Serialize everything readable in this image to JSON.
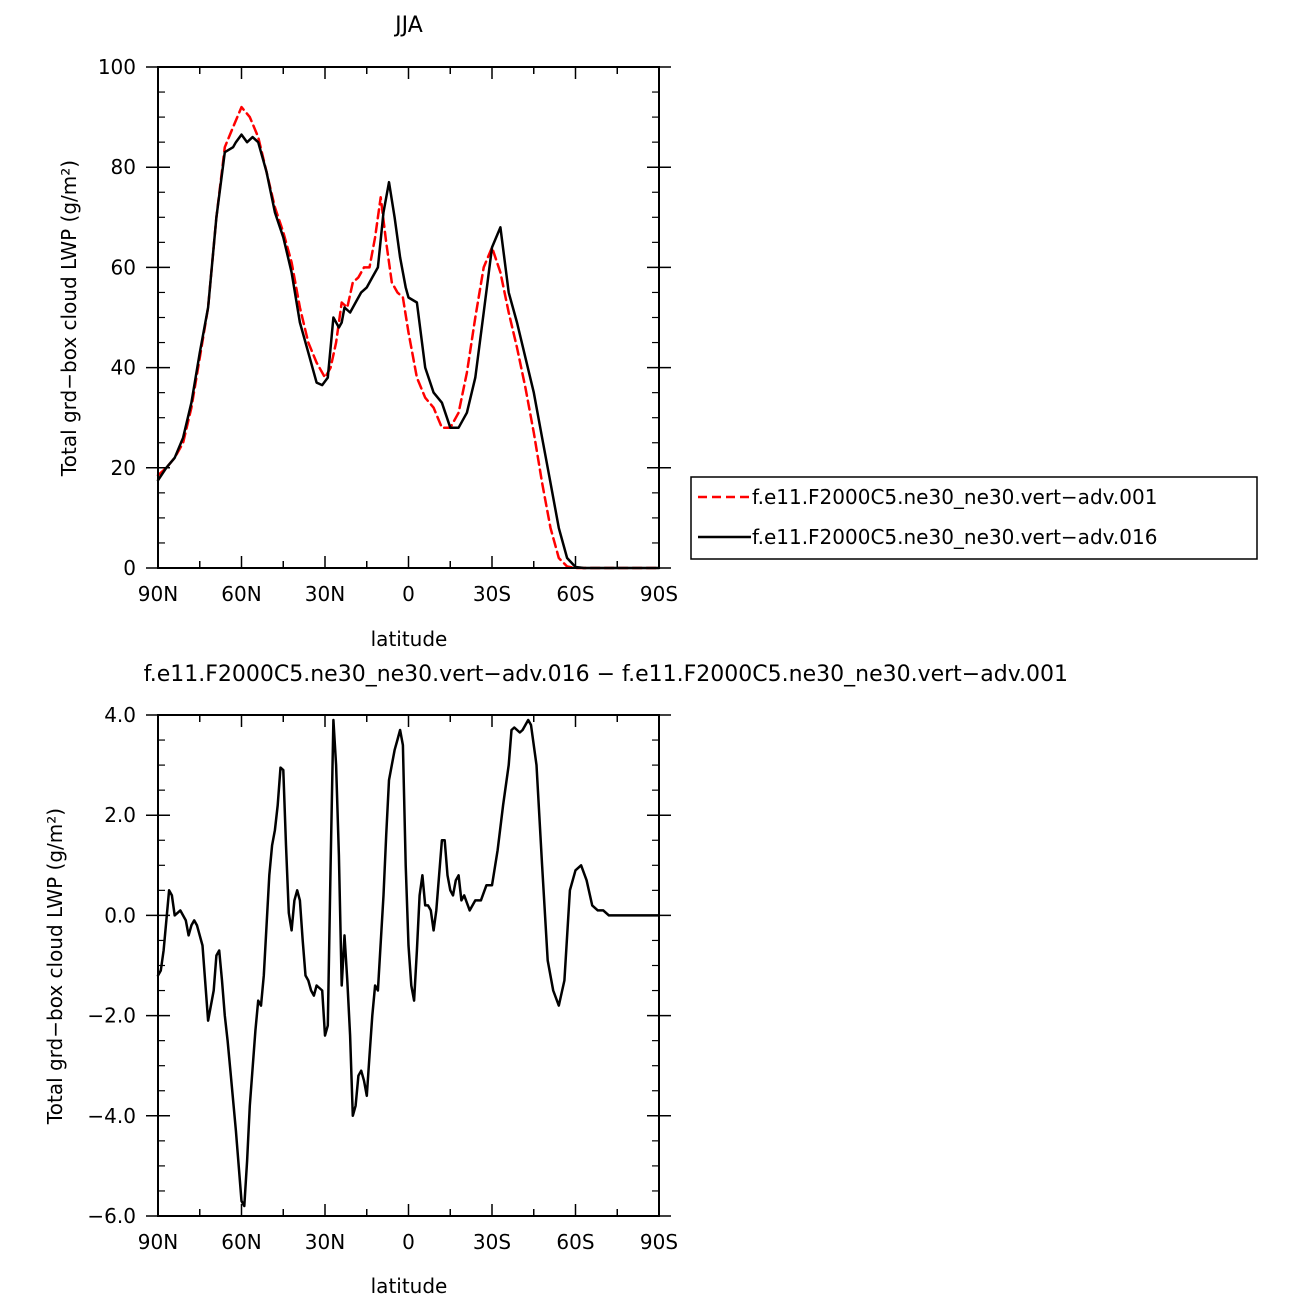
{
  "chart_data": [
    {
      "type": "line",
      "title": "JJA",
      "xlabel": "latitude",
      "ylabel": "Total grd−box cloud LWP (g/m²)",
      "xlim": [
        90,
        -90
      ],
      "ylim": [
        0,
        100
      ],
      "xticks": [
        {
          "value": 90,
          "label": "90N"
        },
        {
          "value": 60,
          "label": "60N"
        },
        {
          "value": 30,
          "label": "30N"
        },
        {
          "value": 0,
          "label": "0"
        },
        {
          "value": -30,
          "label": "30S"
        },
        {
          "value": -60,
          "label": "60S"
        },
        {
          "value": -90,
          "label": "90S"
        }
      ],
      "yticks": [
        {
          "value": 0,
          "label": "0"
        },
        {
          "value": 20,
          "label": "20"
        },
        {
          "value": 40,
          "label": "40"
        },
        {
          "value": 60,
          "label": "60"
        },
        {
          "value": 80,
          "label": "80"
        },
        {
          "value": 100,
          "label": "100"
        }
      ],
      "legend_position": "right",
      "series": [
        {
          "name": "f.e11.F2000C5.ne30_ne30.vert−adv.001",
          "color": "#ff0000",
          "dash": "dashed",
          "x": [
            90,
            87,
            84,
            81,
            78,
            75,
            72,
            69,
            66,
            63,
            60,
            57,
            54,
            51,
            48,
            45,
            42,
            39,
            36,
            33,
            30,
            28,
            26,
            24,
            22,
            20,
            18,
            16,
            14,
            12,
            10,
            8,
            6,
            4,
            2,
            0,
            -3,
            -6,
            -9,
            -12,
            -15,
            -18,
            -21,
            -24,
            -27,
            -30,
            -33,
            -36,
            -39,
            -42,
            -45,
            -48,
            -51,
            -54,
            -57,
            -60,
            -63,
            -66,
            -69,
            -72,
            -75,
            -78,
            -81,
            -84,
            -87,
            -90
          ],
          "y": [
            18.5,
            20,
            22,
            25,
            32,
            42,
            52,
            70,
            84,
            88,
            92,
            90,
            86,
            79,
            72,
            67,
            61,
            52,
            45,
            41,
            38,
            40,
            45,
            53,
            52,
            57,
            58,
            60,
            60,
            66,
            74,
            65,
            57,
            55,
            54,
            47,
            38,
            34,
            32,
            28,
            28,
            31,
            39,
            50,
            60,
            64,
            59,
            51,
            44,
            36,
            27,
            17,
            8,
            2,
            0.3,
            0,
            0,
            0,
            0,
            0,
            0,
            0,
            0,
            0,
            0,
            0
          ]
        },
        {
          "name": "f.e11.F2000C5.ne30_ne30.vert−adv.016",
          "color": "#000000",
          "dash": "solid",
          "x": [
            90,
            87,
            84,
            81,
            78,
            75,
            72,
            69,
            66,
            63,
            62,
            60,
            58,
            56,
            54,
            51,
            48,
            45,
            42,
            39,
            36,
            33,
            31,
            29,
            28,
            27,
            25,
            24,
            23,
            21,
            19,
            17,
            15,
            13,
            11,
            9,
            7,
            5,
            3,
            1,
            0,
            -3,
            -6,
            -9,
            -12,
            -15,
            -18,
            -21,
            -24,
            -27,
            -30,
            -33,
            -36,
            -39,
            -42,
            -45,
            -48,
            -51,
            -54,
            -57,
            -60,
            -63,
            -66,
            -69,
            -72,
            -75,
            -78,
            -81,
            -84,
            -87,
            -90
          ],
          "y": [
            17.5,
            20,
            22,
            26,
            33,
            43,
            52,
            70,
            83,
            84,
            85,
            86.5,
            85,
            86,
            85,
            79,
            71,
            66,
            59,
            49,
            43,
            37,
            36.5,
            38,
            44,
            50,
            48,
            49,
            52,
            51,
            53,
            55,
            56,
            58,
            60,
            71,
            77,
            70,
            62,
            56,
            54,
            53,
            40,
            35,
            33,
            28,
            28,
            31,
            38,
            51,
            64,
            68,
            55,
            49,
            42,
            35,
            26,
            17,
            8,
            2,
            0.2,
            0,
            0,
            0,
            0,
            0,
            0,
            0,
            0,
            0,
            0
          ]
        }
      ]
    },
    {
      "type": "line",
      "title": "f.e11.F2000C5.ne30_ne30.vert−adv.016 − f.e11.F2000C5.ne30_ne30.vert−adv.001",
      "xlabel": "latitude",
      "ylabel": "Total grd−box cloud LWP (g/m²)",
      "xlim": [
        90,
        -90
      ],
      "ylim": [
        -6,
        4
      ],
      "xticks": [
        {
          "value": 90,
          "label": "90N"
        },
        {
          "value": 60,
          "label": "60N"
        },
        {
          "value": 30,
          "label": "30N"
        },
        {
          "value": 0,
          "label": "0"
        },
        {
          "value": -30,
          "label": "30S"
        },
        {
          "value": -60,
          "label": "60S"
        },
        {
          "value": -90,
          "label": "90S"
        }
      ],
      "yticks": [
        {
          "value": -6,
          "label": "−6.0"
        },
        {
          "value": -4,
          "label": "−4.0"
        },
        {
          "value": -2,
          "label": "−2.0"
        },
        {
          "value": 0,
          "label": "0.0"
        },
        {
          "value": 2,
          "label": "2.0"
        },
        {
          "value": 4,
          "label": "4.0"
        }
      ],
      "series": [
        {
          "name": "",
          "color": "#000000",
          "dash": "solid",
          "x": [
            90,
            89,
            88,
            86,
            85,
            84,
            82,
            80,
            79,
            78,
            77,
            76,
            74,
            72,
            70,
            69,
            68,
            67,
            66,
            65,
            64,
            62,
            60,
            59,
            58,
            57,
            55,
            54,
            53,
            52,
            50,
            49,
            48,
            47,
            46,
            45,
            44,
            43,
            42,
            41,
            40,
            39,
            38,
            37,
            36,
            35,
            34,
            33,
            31,
            30,
            29,
            28,
            27,
            26,
            25,
            24,
            23,
            22,
            21,
            20,
            19,
            18,
            17,
            16,
            15,
            14,
            13,
            12,
            11,
            9,
            8,
            7,
            5,
            4,
            3,
            2,
            1,
            0,
            -1,
            -2,
            -3,
            -4,
            -5,
            -6,
            -7,
            -8,
            -9,
            -10,
            -11,
            -12,
            -13,
            -14,
            -15,
            -16,
            -17,
            -18,
            -19,
            -20,
            -22,
            -24,
            -26,
            -28,
            -30,
            -32,
            -34,
            -36,
            -37,
            -38,
            -40,
            -41,
            -42,
            -43,
            -44,
            -46,
            -48,
            -50,
            -52,
            -54,
            -56,
            -58,
            -60,
            -62,
            -64,
            -66,
            -68,
            -70,
            -72,
            -75,
            -80,
            -85,
            -90
          ],
          "y": [
            -1.2,
            -1.1,
            -0.7,
            0.5,
            0.4,
            0,
            0.1,
            -0.1,
            -0.4,
            -0.2,
            -0.1,
            -0.2,
            -0.6,
            -2.1,
            -1.5,
            -0.8,
            -0.7,
            -1.3,
            -2,
            -2.5,
            -3.1,
            -4.3,
            -5.7,
            -5.8,
            -4.9,
            -3.8,
            -2.3,
            -1.7,
            -1.8,
            -1.2,
            0.8,
            1.4,
            1.7,
            2.2,
            2.95,
            2.9,
            1.4,
            0.05,
            -0.3,
            0.3,
            0.5,
            0.3,
            -0.5,
            -1.2,
            -1.3,
            -1.5,
            -1.6,
            -1.4,
            -1.5,
            -2.4,
            -2.2,
            1,
            3.9,
            3,
            1.2,
            -1.4,
            -0.4,
            -1.3,
            -2.4,
            -4,
            -3.8,
            -3.2,
            -3.1,
            -3.3,
            -3.6,
            -2.8,
            -2,
            -1.4,
            -1.5,
            0.4,
            1.6,
            2.7,
            3.3,
            3.5,
            3.7,
            3.4,
            1,
            -0.6,
            -1.4,
            -1.7,
            -0.7,
            0.4,
            0.8,
            0.2,
            0.2,
            0.1,
            -0.3,
            0.1,
            0.8,
            1.5,
            1.5,
            0.8,
            0.5,
            0.4,
            0.7,
            0.8,
            0.3,
            0.4,
            0.1,
            0.3,
            0.3,
            0.6,
            0.6,
            1.3,
            2.2,
            3,
            3.7,
            3.75,
            3.65,
            3.7,
            3.8,
            3.9,
            3.8,
            3,
            1,
            -0.9,
            -1.5,
            -1.8,
            -1.3,
            0.5,
            0.9,
            1,
            0.7,
            0.2,
            0.1,
            0.1,
            0,
            0,
            0,
            0,
            0
          ]
        }
      ]
    }
  ]
}
